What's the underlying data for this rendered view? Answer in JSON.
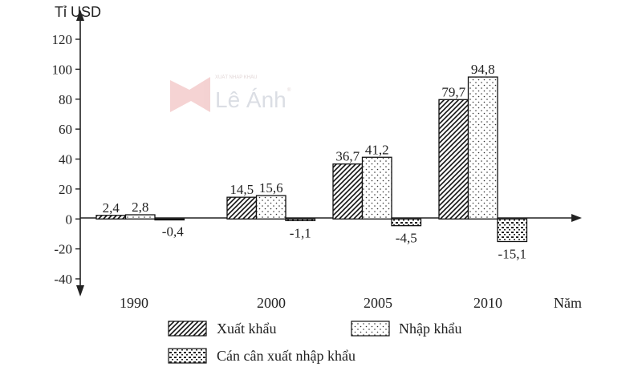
{
  "chart_data": {
    "type": "bar",
    "ylabel": "Tỉ USD",
    "xlabel": "Năm",
    "ylim": [
      -40,
      120
    ],
    "yticks": [
      -40,
      -20,
      0,
      20,
      40,
      60,
      80,
      100,
      120
    ],
    "ytick_labels": [
      "-40",
      "-20",
      "0",
      "20",
      "40",
      "60",
      "80",
      "100",
      "120"
    ],
    "categories": [
      "1990",
      "2000",
      "2005",
      "2010"
    ],
    "series": [
      {
        "name": "Xuất khẩu",
        "pattern": "diagonal",
        "values": [
          2.4,
          14.5,
          36.7,
          79.7
        ],
        "labels": [
          "2,4",
          "14,5",
          "36,7",
          "79,7"
        ]
      },
      {
        "name": "Nhập khẩu",
        "pattern": "dots",
        "values": [
          2.8,
          15.6,
          41.2,
          94.8
        ],
        "labels": [
          "2,8",
          "15,6",
          "41,2",
          "94,8"
        ]
      },
      {
        "name": "Cán cân xuất nhập khẩu",
        "pattern": "brick",
        "values": [
          -0.4,
          -1.1,
          -4.5,
          -15.1
        ],
        "labels": [
          "-0,4",
          "-1,1",
          "-4,5",
          "-15,1"
        ]
      }
    ],
    "legend_position": "bottom",
    "grid": false
  },
  "watermark": {
    "brand": "Lê Ánh",
    "tagline": "XUẤT NHẬP KHẨU",
    "mark": "®",
    "accent_color": "#e8a8a8"
  }
}
